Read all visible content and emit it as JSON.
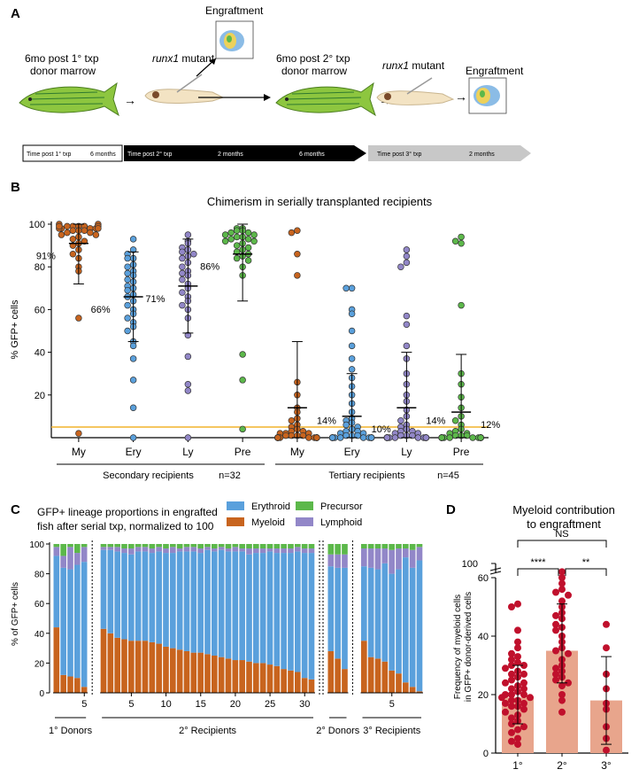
{
  "panels": {
    "a": "A",
    "b": "B",
    "c": "C",
    "d": "D"
  },
  "panel_a": {
    "step1": "6mo post 1° txp",
    "step1b": "donor marrow",
    "mutant1": "runx1",
    "mutant1b": " mutant",
    "engraft1": "Engraftment",
    "step2": "6mo post 2° txp",
    "step2b": "donor marrow",
    "mutant2": "runx1",
    "mutant2b": " mutant",
    "engraft2": "Engraftment",
    "timeline": [
      {
        "label": "Time post 1° txp",
        "sub": "6 months",
        "sub2": ""
      },
      {
        "label": "Time post 2° txp",
        "sub": "2 months",
        "sub2": "6 months"
      },
      {
        "label": "Time post 3° txp",
        "sub": "2 months",
        "sub2": ""
      }
    ],
    "colors": {
      "fish": "#8dc63f",
      "fish_stripe": "#2f7a2f",
      "larva": "#f3e3c3",
      "dark_bar": "#000000",
      "grey_bar": "#c8c8c8"
    }
  },
  "chart_data": [
    {
      "type": "scatter",
      "title": "Chimerism in serially transplanted recipients",
      "ylabel": "% GFP+ cells",
      "ylim": [
        0,
        100
      ],
      "yticks": [
        20,
        40,
        60,
        80,
        100
      ],
      "threshold": 5,
      "threshold_color": "#f2b42c",
      "categories": [
        "My",
        "Ery",
        "Ly",
        "Pre",
        "My",
        "Ery",
        "Ly",
        "Pre"
      ],
      "groups": [
        {
          "label": "Secondary recipients",
          "n": "n=32"
        },
        {
          "label": "Tertiary recipients",
          "n": "n=45"
        }
      ],
      "series": [
        {
          "name": "My",
          "color": "#c8641e",
          "mean": 91,
          "mean_label": "91%",
          "sd": [
            72,
            100
          ],
          "values": [
            99,
            99,
            99,
            99,
            98,
            98,
            98,
            98,
            97,
            97,
            97,
            96,
            96,
            95,
            95,
            94,
            93,
            92,
            91,
            90,
            88,
            86,
            84,
            80,
            78,
            100,
            100,
            99,
            99,
            98,
            56,
            2
          ]
        },
        {
          "name": "Ery",
          "color": "#5aa0dc",
          "mean": 66,
          "mean_label": "66%",
          "sd": [
            45,
            87
          ],
          "values": [
            93,
            88,
            86,
            84,
            84,
            81,
            80,
            78,
            77,
            76,
            74,
            73,
            71,
            70,
            69,
            67,
            66,
            64,
            62,
            60,
            58,
            56,
            54,
            52,
            50,
            45,
            43,
            37,
            27,
            14,
            0
          ]
        },
        {
          "name": "Ly",
          "color": "#9287c8",
          "mean": 71,
          "mean_label": "71%",
          "sd": [
            49,
            93
          ],
          "values": [
            95,
            92,
            91,
            89,
            88,
            87,
            86,
            85,
            84,
            82,
            80,
            78,
            77,
            76,
            74,
            72,
            70,
            68,
            66,
            64,
            62,
            60,
            56,
            48,
            38,
            25,
            22,
            0
          ]
        },
        {
          "name": "Pre",
          "color": "#5cb84a",
          "mean": 86,
          "mean_label": "86%",
          "sd": [
            64,
            100
          ],
          "values": [
            98,
            98,
            97,
            97,
            96,
            96,
            95,
            95,
            94,
            94,
            93,
            93,
            92,
            92,
            91,
            90,
            89,
            88,
            87,
            86,
            85,
            84,
            83,
            80,
            76,
            39,
            27,
            4
          ]
        },
        {
          "name": "My",
          "color": "#c8641e",
          "mean": 14,
          "mean_label": "14%",
          "sd": [
            0,
            45
          ],
          "values": [
            97,
            96,
            86,
            76,
            26,
            20,
            14,
            12,
            9,
            8,
            6,
            5,
            4,
            3,
            3,
            2,
            2,
            2,
            1,
            1,
            1,
            1,
            0,
            0,
            0,
            0,
            0,
            0,
            0,
            0,
            0,
            0,
            0,
            0,
            0,
            0,
            0,
            0,
            0,
            0,
            0
          ]
        },
        {
          "name": "Ery",
          "color": "#5aa0dc",
          "mean": 10,
          "mean_label": "10%",
          "sd": [
            0,
            30
          ],
          "values": [
            70,
            70,
            60,
            58,
            50,
            43,
            37,
            32,
            28,
            24,
            20,
            16,
            12,
            9,
            8,
            7,
            6,
            5,
            4,
            3,
            3,
            2,
            2,
            1,
            1,
            1,
            0,
            0,
            0,
            0,
            0,
            0,
            0,
            0,
            0,
            0,
            0,
            0,
            0,
            0,
            0
          ]
        },
        {
          "name": "Ly",
          "color": "#9287c8",
          "mean": 14,
          "mean_label": "14%",
          "sd": [
            0,
            40
          ],
          "values": [
            88,
            85,
            82,
            80,
            57,
            53,
            43,
            37,
            30,
            25,
            20,
            17,
            13,
            10,
            8,
            6,
            5,
            4,
            3,
            3,
            2,
            2,
            1,
            1,
            1,
            0,
            0,
            0,
            0,
            0,
            0,
            0,
            0,
            0,
            0,
            0,
            0,
            0,
            0,
            0
          ]
        },
        {
          "name": "Pre",
          "color": "#5cb84a",
          "mean": 12,
          "mean_label": "12%",
          "sd": [
            0,
            39
          ],
          "values": [
            94,
            92,
            91,
            62,
            30,
            25,
            19,
            14,
            10,
            8,
            6,
            4,
            3,
            2,
            2,
            1,
            1,
            1,
            0,
            0,
            0,
            0,
            0,
            0,
            0,
            0,
            0,
            0,
            0,
            0,
            0,
            0,
            0,
            0,
            0,
            0,
            0,
            0
          ]
        }
      ]
    },
    {
      "type": "bar",
      "stacked": true,
      "title_line1": "GFP+ lineage proportions in engrafted",
      "title_line2": "fish after serial txp, normalized to 100",
      "ylabel": "% of GFP+ cells",
      "ylim": [
        0,
        100
      ],
      "yticks": [
        0,
        20,
        40,
        60,
        80,
        100
      ],
      "legend": [
        {
          "name": "Erythroid",
          "color": "#5aa0dc"
        },
        {
          "name": "Precursor",
          "color": "#5cb84a"
        },
        {
          "name": "Myeloid",
          "color": "#c8641e"
        },
        {
          "name": "Lymphoid",
          "color": "#9287c8"
        }
      ],
      "groups": [
        {
          "label": "1° Donors",
          "ticks": [
            "5"
          ],
          "bars": [
            [
              44,
              48,
              2,
              6
            ],
            [
              12,
              72,
              8,
              8
            ],
            [
              11,
              72,
              2,
              15
            ],
            [
              10,
              76,
              6,
              8
            ],
            [
              4,
              84,
              2,
              10
            ]
          ]
        },
        {
          "label": "2° Recipients",
          "ticks": [
            "5",
            "10",
            "15",
            "20",
            "25",
            "30"
          ],
          "bars": [
            [
              43,
              53,
              2,
              2
            ],
            [
              40,
              56,
              2,
              2
            ],
            [
              37,
              58,
              2,
              3
            ],
            [
              36,
              58,
              3,
              3
            ],
            [
              35,
              58,
              3,
              4
            ],
            [
              35,
              60,
              2,
              3
            ],
            [
              35,
              60,
              2,
              3
            ],
            [
              34,
              60,
              3,
              3
            ],
            [
              33,
              62,
              2,
              3
            ],
            [
              31,
              63,
              3,
              3
            ],
            [
              30,
              64,
              2,
              4
            ],
            [
              29,
              66,
              3,
              2
            ],
            [
              28,
              67,
              2,
              3
            ],
            [
              27,
              68,
              2,
              3
            ],
            [
              27,
              67,
              3,
              3
            ],
            [
              26,
              70,
              2,
              2
            ],
            [
              25,
              70,
              3,
              2
            ],
            [
              24,
              72,
              2,
              2
            ],
            [
              23,
              72,
              3,
              2
            ],
            [
              22,
              73,
              2,
              3
            ],
            [
              22,
              73,
              3,
              2
            ],
            [
              21,
              72,
              3,
              4
            ],
            [
              20,
              74,
              3,
              3
            ],
            [
              20,
              74,
              3,
              3
            ],
            [
              19,
              76,
              3,
              2
            ],
            [
              18,
              76,
              3,
              3
            ],
            [
              16,
              78,
              3,
              3
            ],
            [
              15,
              79,
              3,
              3
            ],
            [
              14,
              81,
              2,
              3
            ],
            [
              10,
              84,
              3,
              3
            ],
            [
              9,
              85,
              3,
              3
            ]
          ]
        },
        {
          "label": "2° Donors",
          "ticks": [],
          "bars": [
            [
              28,
              57,
              7,
              8
            ],
            [
              23,
              61,
              7,
              9
            ],
            [
              16,
              68,
              7,
              9
            ]
          ]
        },
        {
          "label": "3° Recipients",
          "ticks": [
            "5"
          ],
          "bars": [
            [
              35,
              50,
              3,
              12
            ],
            [
              24,
              60,
              3,
              13
            ],
            [
              23,
              60,
              3,
              14
            ],
            [
              21,
              66,
              3,
              10
            ],
            [
              15,
              65,
              4,
              16
            ],
            [
              13,
              70,
              3,
              14
            ],
            [
              7,
              84,
              3,
              6
            ],
            [
              4,
              80,
              4,
              12
            ],
            [
              1,
              88,
              2,
              9
            ]
          ]
        }
      ]
    },
    {
      "type": "bar",
      "title_line1": "Myeloid contribution",
      "title_line2": "to engraftment",
      "ylabel_line1": "Frequency of myeloid cells",
      "ylabel_line2": "in GFP+ donor-derived cells",
      "ylim": [
        0,
        60
      ],
      "yticks": [
        0,
        20,
        40,
        60
      ],
      "break_tick": "100",
      "bar_color": "#e8a58c",
      "point_color": "#c0102c",
      "categories": [
        "1°",
        "2°",
        "3°"
      ],
      "means": [
        19,
        35,
        18
      ],
      "sd": [
        [
          10,
          30
        ],
        [
          24,
          51
        ],
        [
          3,
          33
        ]
      ],
      "points": [
        [
          51,
          50,
          42,
          38,
          36,
          34,
          33,
          32,
          31,
          30,
          30,
          29,
          28,
          27,
          27,
          26,
          25,
          24,
          24,
          23,
          22,
          22,
          21,
          20,
          20,
          20,
          19,
          19,
          18,
          18,
          17,
          17,
          16,
          16,
          15,
          14,
          13,
          12,
          11,
          10,
          9,
          8,
          7,
          5,
          4,
          3
        ],
        [
          62,
          60,
          58,
          56,
          55,
          54,
          52,
          50,
          48,
          47,
          46,
          44,
          43,
          42,
          40,
          38,
          36,
          35,
          34,
          32,
          30,
          29,
          28,
          27,
          26,
          25,
          24,
          23,
          20,
          18,
          14
        ],
        [
          44,
          36,
          27,
          22,
          17,
          15,
          9,
          5,
          1
        ]
      ],
      "comparisons": [
        {
          "pair": [
            0,
            2
          ],
          "label": "NS"
        },
        {
          "pair": [
            0,
            1
          ],
          "label": "****"
        },
        {
          "pair": [
            1,
            2
          ],
          "label": "**"
        }
      ]
    }
  ]
}
